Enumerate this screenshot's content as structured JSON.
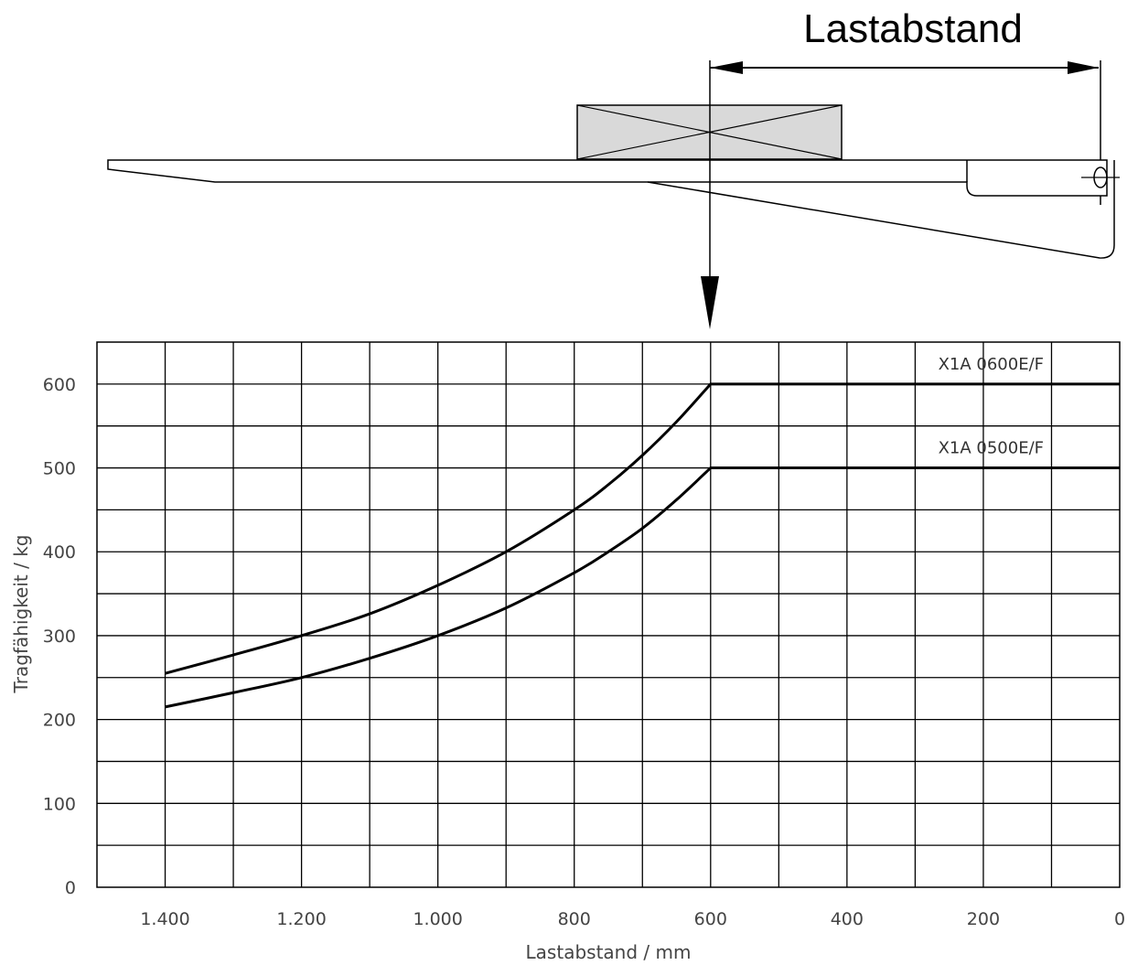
{
  "diagram": {
    "dimension_label": "Lastabstand"
  },
  "chart_data": {
    "type": "line",
    "xlabel": "Lastabstand / mm",
    "ylabel": "Tragfähigkeit / kg",
    "xlim": [
      1500,
      0
    ],
    "ylim": [
      0,
      650
    ],
    "x_reversed": true,
    "grid": true,
    "x_ticks": [
      1400,
      1200,
      1000,
      800,
      600,
      400,
      200,
      0
    ],
    "x_tick_labels": [
      "1.400",
      "1.200",
      "1.000",
      "800",
      "600",
      "400",
      "200",
      "0"
    ],
    "y_ticks": [
      0,
      100,
      200,
      300,
      400,
      500,
      600
    ],
    "y_tick_labels": [
      "0",
      "100",
      "200",
      "300",
      "400",
      "500",
      "600"
    ],
    "series": [
      {
        "name": "X1A 0600E/F",
        "x": [
          1400,
          1300,
          1200,
          1100,
          1000,
          900,
          800,
          750,
          700,
          650,
          600,
          300,
          0
        ],
        "y": [
          255,
          277,
          300,
          326,
          360,
          400,
          450,
          480,
          515,
          555,
          600,
          600,
          600
        ]
      },
      {
        "name": "X1A 0500E/F",
        "x": [
          1400,
          1300,
          1200,
          1100,
          1000,
          900,
          800,
          750,
          700,
          650,
          600,
          300,
          0
        ],
        "y": [
          215,
          232,
          250,
          273,
          300,
          333,
          375,
          400,
          428,
          462,
          500,
          500,
          500
        ]
      }
    ]
  }
}
